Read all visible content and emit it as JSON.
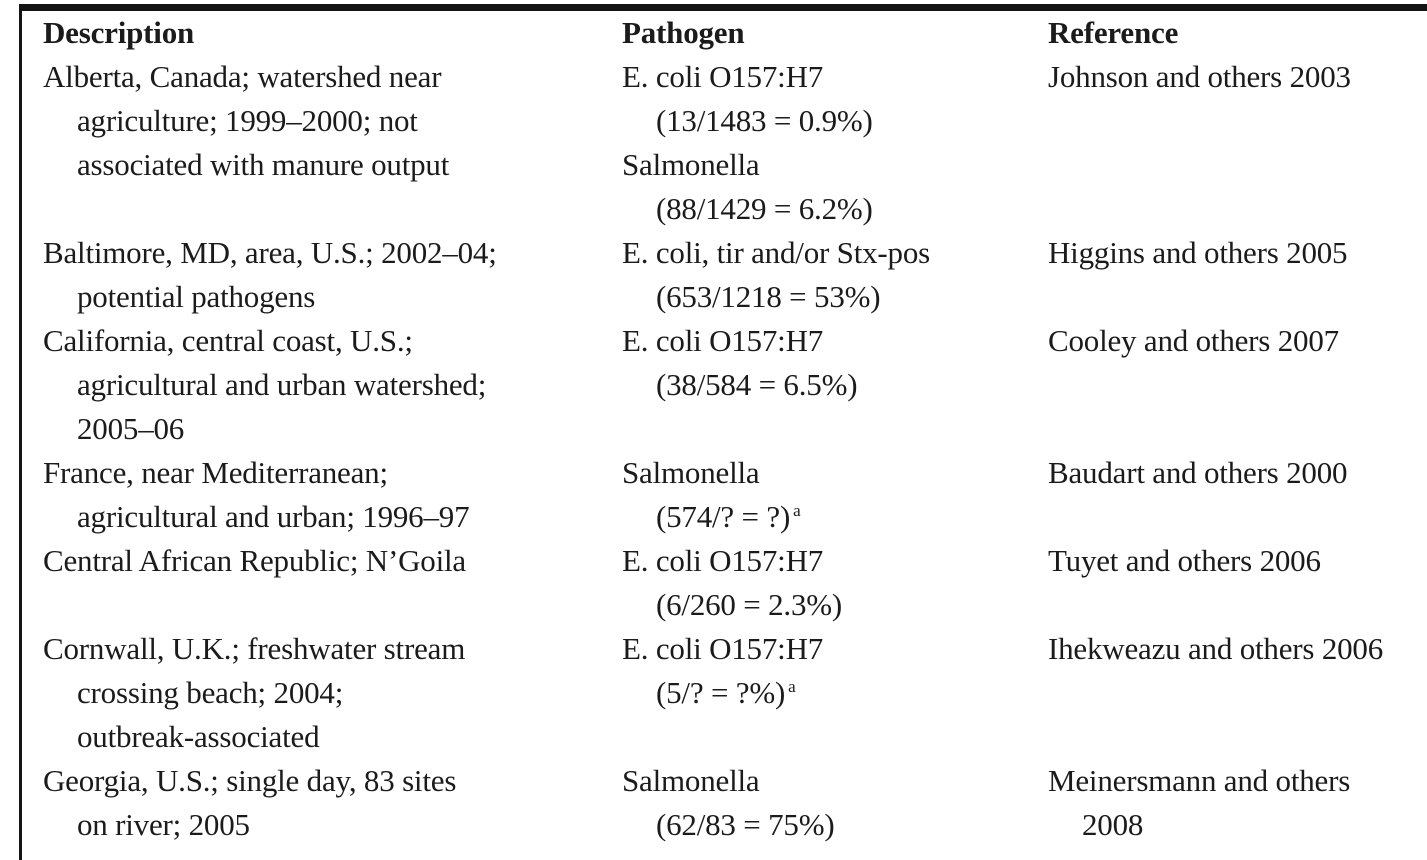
{
  "table": {
    "columns": [
      {
        "label": "Description"
      },
      {
        "label": "Pathogen"
      },
      {
        "label": "Reference"
      }
    ],
    "rows": [
      {
        "description": [
          {
            "t": "Alberta, Canada; watershed near",
            "i": false
          },
          {
            "t": "agriculture; 1999–2000; not",
            "i": true
          },
          {
            "t": "associated with manure output",
            "i": true
          }
        ],
        "pathogen": [
          {
            "t": "E. coli O157:H7",
            "i": false
          },
          {
            "t": "(13/1483 = 0.9%)",
            "i": true
          },
          {
            "t": "Salmonella",
            "i": false
          },
          {
            "t": "(88/1429 = 6.2%)",
            "i": true
          }
        ],
        "reference": [
          {
            "t": "Johnson and others 2003",
            "i": false
          }
        ]
      },
      {
        "description": [
          {
            "t": "Baltimore, MD, area, U.S.; 2002–04;",
            "i": false
          },
          {
            "t": "potential pathogens",
            "i": true
          }
        ],
        "pathogen": [
          {
            "t": "E. coli, tir and/or Stx-pos",
            "i": false
          },
          {
            "t": "(653/1218 = 53%)",
            "i": true
          }
        ],
        "reference": [
          {
            "t": "Higgins and others 2005",
            "i": false
          }
        ]
      },
      {
        "description": [
          {
            "t": "California, central coast, U.S.;",
            "i": false
          },
          {
            "t": "agricultural and urban watershed;",
            "i": true
          },
          {
            "t": "2005–06",
            "i": true
          }
        ],
        "pathogen": [
          {
            "t": "E. coli O157:H7",
            "i": false
          },
          {
            "t": "(38/584 = 6.5%)",
            "i": true
          }
        ],
        "reference": [
          {
            "t": "Cooley and others 2007",
            "i": false
          }
        ]
      },
      {
        "description": [
          {
            "t": "France, near Mediterranean;",
            "i": false
          },
          {
            "t": "agricultural and urban; 1996–97",
            "i": true
          }
        ],
        "pathogen": [
          {
            "t": "Salmonella",
            "i": false
          },
          {
            "t": "(574/? = ?)",
            "i": true,
            "sup": "a"
          }
        ],
        "reference": [
          {
            "t": "Baudart and others 2000",
            "i": false
          }
        ]
      },
      {
        "description": [
          {
            "t": "Central African Republic; N’Goila",
            "i": false
          }
        ],
        "pathogen": [
          {
            "t": "E. coli O157:H7",
            "i": false
          },
          {
            "t": "(6/260 = 2.3%)",
            "i": true
          }
        ],
        "reference": [
          {
            "t": "Tuyet and others 2006",
            "i": false
          }
        ]
      },
      {
        "description": [
          {
            "t": "Cornwall, U.K.; freshwater stream",
            "i": false
          },
          {
            "t": "crossing beach; 2004;",
            "i": true
          },
          {
            "t": "outbreak-associated",
            "i": true
          }
        ],
        "pathogen": [
          {
            "t": "E. coli O157:H7",
            "i": false
          },
          {
            "t": "(5/? = ?%)",
            "i": true,
            "sup": "a"
          }
        ],
        "reference": [
          {
            "t": "Ihekweazu and others 2006",
            "i": false
          }
        ]
      },
      {
        "description": [
          {
            "t": "Georgia, U.S.; single day, 83 sites",
            "i": false
          },
          {
            "t": "on river; 2005",
            "i": true
          }
        ],
        "pathogen": [
          {
            "t": "Salmonella",
            "i": false
          },
          {
            "t": "(62/83 = 75%)",
            "i": true
          }
        ],
        "reference": [
          {
            "t": "Meinersmann and others",
            "i": false
          },
          {
            "t": "2008",
            "i": true
          }
        ]
      }
    ]
  }
}
